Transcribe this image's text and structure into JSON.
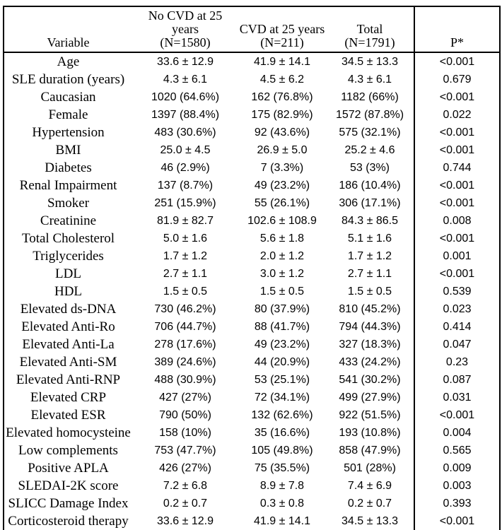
{
  "page": {
    "background": "#ffffff",
    "text_color": "#000000",
    "border_color": "#000000"
  },
  "table": {
    "header": {
      "columns": [
        {
          "id": "variable",
          "lines": [
            "Variable"
          ]
        },
        {
          "id": "no_cvd_25y",
          "lines": [
            "No CVD at 25",
            "years",
            "(N=1580)"
          ]
        },
        {
          "id": "cvd_25y",
          "lines": [
            "CVD at 25 years",
            "(N=211)"
          ]
        },
        {
          "id": "total",
          "lines": [
            "Total",
            "(N=1791)"
          ]
        },
        {
          "id": "p_value",
          "lines": [
            "P*"
          ]
        }
      ]
    },
    "rows": [
      [
        "Age",
        "33.6 ± 12.9",
        "41.9 ± 14.1",
        "34.5 ± 13.3",
        "<0.001"
      ],
      [
        "SLE duration (years)",
        "4.3 ± 6.1",
        "4.5 ± 6.2",
        "4.3 ± 6.1",
        "0.679"
      ],
      [
        "Caucasian",
        "1020 (64.6%)",
        "162 (76.8%)",
        "1182 (66%)",
        "<0.001"
      ],
      [
        "Female",
        "1397 (88.4%)",
        "175 (82.9%)",
        "1572 (87.8%)",
        "0.022"
      ],
      [
        "Hypertension",
        "483 (30.6%)",
        "92 (43.6%)",
        "575 (32.1%)",
        "<0.001"
      ],
      [
        "BMI",
        "25.0 ± 4.5",
        "26.9 ± 5.0",
        "25.2 ± 4.6",
        "<0.001"
      ],
      [
        "Diabetes",
        "46 (2.9%)",
        "7 (3.3%)",
        "53 (3%)",
        "0.744"
      ],
      [
        "Renal Impairment",
        "137 (8.7%)",
        "49 (23.2%)",
        "186 (10.4%)",
        "<0.001"
      ],
      [
        "Smoker",
        "251 (15.9%)",
        "55 (26.1%)",
        "306 (17.1%)",
        "<0.001"
      ],
      [
        "Creatinine",
        "81.9 ± 82.7",
        "102.6 ± 108.9",
        "84.3 ± 86.5",
        "0.008"
      ],
      [
        "Total Cholesterol",
        "5.0 ± 1.6",
        "5.6 ± 1.8",
        "5.1 ± 1.6",
        "<0.001"
      ],
      [
        "Triglycerides",
        "1.7 ± 1.2",
        "2.0 ± 1.2",
        "1.7 ± 1.2",
        "0.001"
      ],
      [
        "LDL",
        "2.7 ± 1.1",
        "3.0 ± 1.2",
        "2.7 ± 1.1",
        "<0.001"
      ],
      [
        "HDL",
        "1.5 ± 0.5",
        "1.5 ± 0.5",
        "1.5 ± 0.5",
        "0.539"
      ],
      [
        "Elevated ds-DNA",
        "730 (46.2%)",
        "80 (37.9%)",
        "810 (45.2%)",
        "0.023"
      ],
      [
        "Elevated Anti-Ro",
        "706 (44.7%)",
        "88 (41.7%)",
        "794 (44.3%)",
        "0.414"
      ],
      [
        "Elevated Anti-La",
        "278 (17.6%)",
        "49 (23.2%)",
        "327 (18.3%)",
        "0.047"
      ],
      [
        "Elevated Anti-SM",
        "389 (24.6%)",
        "44 (20.9%)",
        "433 (24.2%)",
        "0.23"
      ],
      [
        "Elevated Anti-RNP",
        "488 (30.9%)",
        "53 (25.1%)",
        "541 (30.2%)",
        "0.087"
      ],
      [
        "Elevated CRP",
        "427 (27%)",
        "72 (34.1%)",
        "499 (27.9%)",
        "0.031"
      ],
      [
        "Elevated ESR",
        "790 (50%)",
        "132 (62.6%)",
        "922 (51.5%)",
        "<0.001"
      ],
      [
        "Elevated homocysteine",
        "158 (10%)",
        "35 (16.6%)",
        "193 (10.8%)",
        "0.004"
      ],
      [
        "Low complements",
        "753 (47.7%)",
        "105 (49.8%)",
        "858 (47.9%)",
        "0.565"
      ],
      [
        "Positive APLA",
        "426 (27%)",
        "75 (35.5%)",
        "501 (28%)",
        "0.009"
      ],
      [
        "SLEDAI-2K score",
        "7.2 ± 6.8",
        "8.9 ± 7.8",
        "7.4 ± 6.9",
        "0.003"
      ],
      [
        "SLICC Damage Index",
        "0.2 ± 0.7",
        "0.3 ± 0.8",
        "0.2 ± 0.7",
        "0.393"
      ],
      [
        "Corticosteroid therapy",
        "33.6 ± 12.9",
        "41.9 ± 14.1",
        "34.5 ± 13.3",
        "<0.001"
      ]
    ]
  }
}
